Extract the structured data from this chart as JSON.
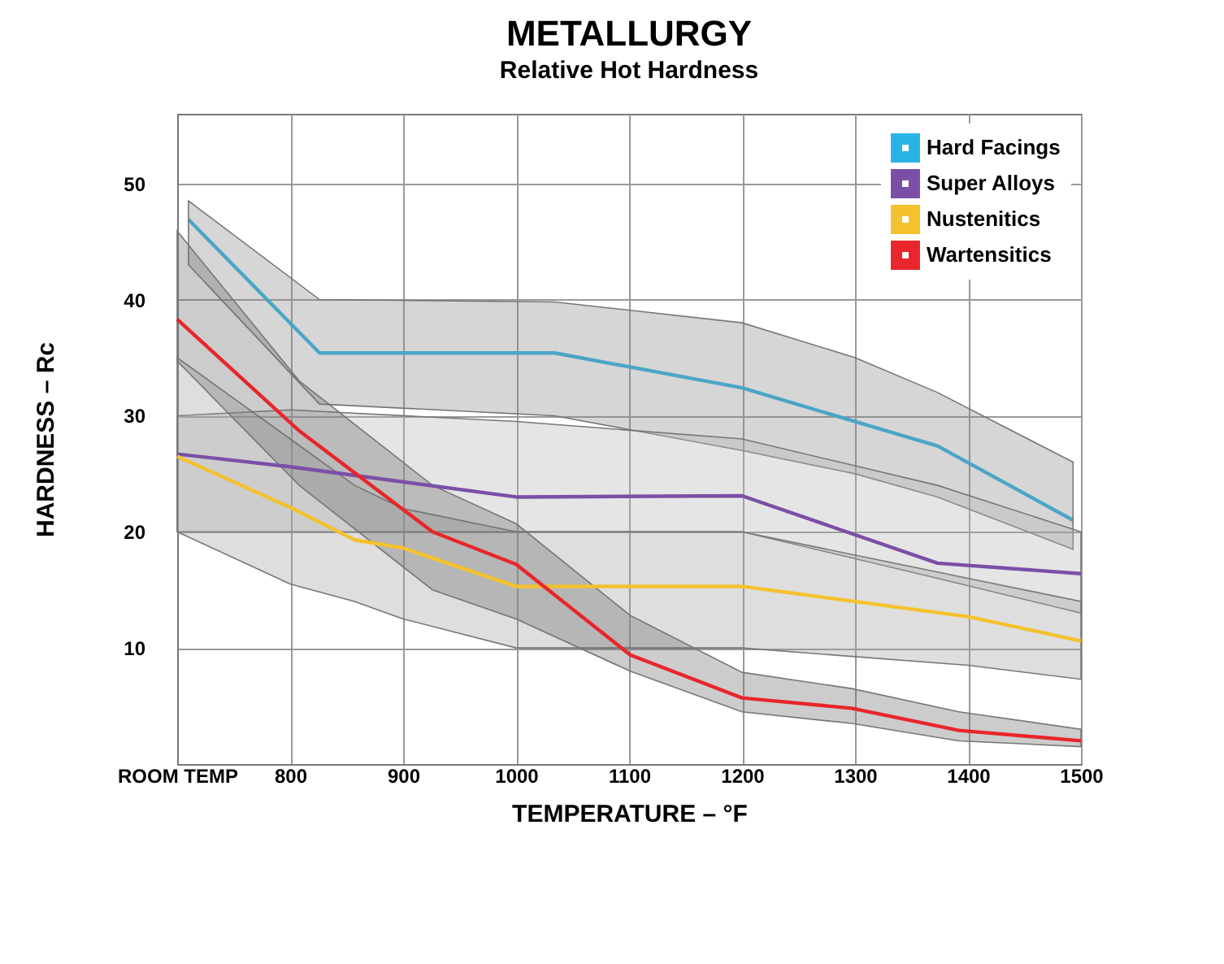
{
  "chart_data": {
    "type": "line",
    "title": "METALLURGY",
    "subtitle": "Relative Hot Hardness",
    "xlabel": "TEMPERATURE – °F",
    "ylabel": "HARDNESS – Rc",
    "xlim": [
      700,
      1500
    ],
    "xticks": [
      {
        "value": 700,
        "label": "ROOM TEMP"
      },
      800,
      900,
      1000,
      1100,
      1200,
      1300,
      1400,
      1500
    ],
    "ylim": [
      0,
      56
    ],
    "yticks": [
      10,
      20,
      30,
      40,
      50
    ],
    "grid": true,
    "legend": "top right",
    "marker": "none",
    "line_style": "solid",
    "series": [
      {
        "name": "Hard Facings",
        "color": "#2ab4e6",
        "x": [
          710,
          826,
          1034,
          1200,
          1300,
          1373,
          1493
        ],
        "values": [
          46.9,
          35.4,
          35.4,
          32.4,
          29.5,
          27.4,
          21.0
        ],
        "lower": [
          43,
          31,
          30,
          27,
          25,
          23,
          18.5
        ],
        "upper": [
          48.5,
          40,
          39.8,
          38,
          35,
          32,
          26
        ]
      },
      {
        "name": "Super Alloys",
        "color": "#7b4fa6",
        "x": [
          700,
          800,
          1000,
          1200,
          1373,
          1500
        ],
        "values": [
          26.7,
          25.6,
          23.0,
          23.1,
          17.3,
          16.4
        ],
        "lower": [
          20,
          20,
          20,
          20,
          16,
          13
        ],
        "upper": [
          30,
          30.5,
          29.5,
          28,
          24,
          20
        ]
      },
      {
        "name": "Nustenitics",
        "color": "#f5c12e",
        "x": [
          700,
          800,
          857,
          900,
          1000,
          1200,
          1400,
          1500
        ],
        "values": [
          26.5,
          22.1,
          19.3,
          18.6,
          15.3,
          15.3,
          12.7,
          10.6
        ],
        "lower": [
          20,
          15.5,
          14,
          12.5,
          10,
          10,
          8.5,
          7.3
        ],
        "upper": [
          35,
          28,
          24,
          22,
          20,
          20,
          16,
          14
        ]
      },
      {
        "name": "Wartensitics",
        "color": "#e8262b",
        "x": [
          700,
          808,
          926,
          1000,
          1101,
          1200,
          1297,
          1392,
          1500
        ],
        "values": [
          38.3,
          28.7,
          20.0,
          17.2,
          9.4,
          5.7,
          4.8,
          2.9,
          2.0
        ],
        "lower": [
          34.7,
          24,
          15,
          12.5,
          8,
          4.5,
          3.5,
          2,
          1.5
        ],
        "upper": [
          45.9,
          33,
          24,
          20.7,
          12.8,
          7.9,
          6.5,
          4.5,
          3
        ]
      }
    ]
  }
}
